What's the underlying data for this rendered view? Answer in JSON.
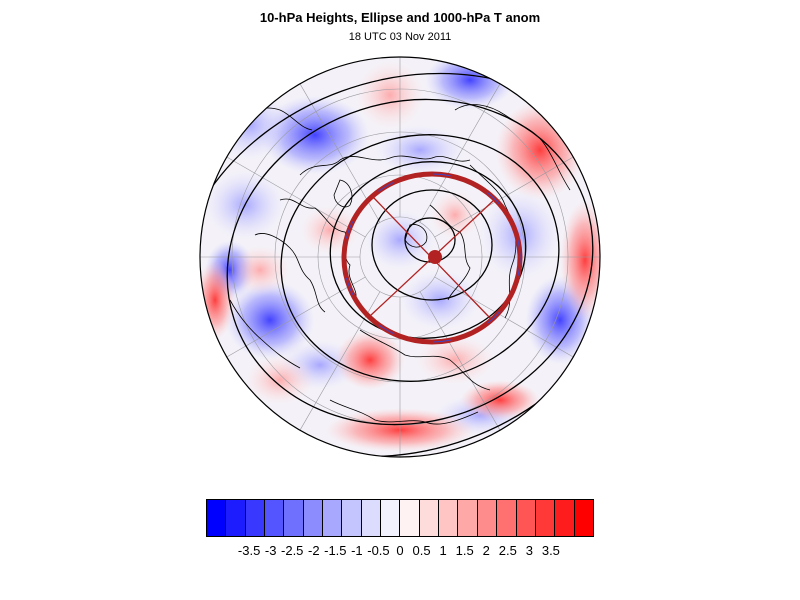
{
  "header": {
    "title": "10-hPa Heights, Ellipse and 1000-hPa T anom",
    "subtitle": "18 UTC 03 Nov 2011"
  },
  "map": {
    "projection": "north-polar-stereographic",
    "shading_variable": "1000-hPa temperature anomaly",
    "contours": "10-hPa geopotential heights",
    "overlay": "vortex ellipse with axes",
    "colors": {
      "ellipse": "#b22222",
      "contour": "#000000",
      "coastline": "#000000",
      "graticule": "#9a9aa0"
    }
  },
  "colorbar": {
    "colors": [
      "#0000ff",
      "#1c1cff",
      "#3838ff",
      "#5555ff",
      "#7070ff",
      "#8c8cff",
      "#a8a8ff",
      "#c4c4ff",
      "#dcdcff",
      "#f2f2ff",
      "#fff2f2",
      "#ffdcdc",
      "#ffc4c4",
      "#ffa8a8",
      "#ff8c8c",
      "#ff7070",
      "#ff5555",
      "#ff3838",
      "#ff1c1c",
      "#ff0000"
    ],
    "labels": [
      "-3.5",
      "-3",
      "-2.5",
      "-2",
      "-1.5",
      "-1",
      "-0.5",
      "0",
      "0.5",
      "1",
      "1.5",
      "2",
      "2.5",
      "3",
      "3.5"
    ],
    "ticks": [
      -3.5,
      -3,
      -2.5,
      -2,
      -1.5,
      -1,
      -0.5,
      0,
      0.5,
      1,
      1.5,
      2,
      2.5,
      3,
      3.5
    ],
    "min": -4.5,
    "max": 4.5
  }
}
